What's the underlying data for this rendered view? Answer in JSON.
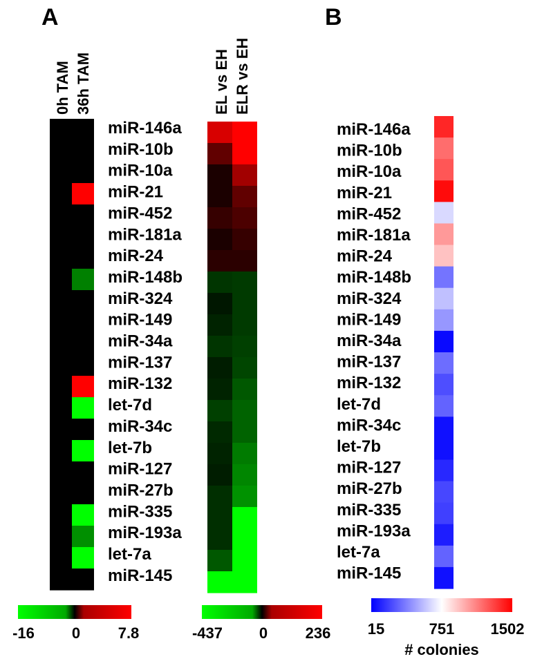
{
  "chart_data": [
    {
      "type": "heatmap",
      "panel_label": "A",
      "columns": [
        "0h TAM",
        "36h TAM"
      ],
      "rows": [
        "miR-146a",
        "miR-10b",
        "miR-10a",
        "miR-21",
        "miR-452",
        "miR-181a",
        "miR-24",
        "miR-148b",
        "miR-324",
        "miR-149",
        "miR-34a",
        "miR-137",
        "miR-132",
        "let-7d",
        "miR-34c",
        "let-7b",
        "miR-127",
        "miR-27b",
        "miR-335",
        "miR-193a",
        "let-7a",
        "miR-145"
      ],
      "values": [
        [
          0,
          0
        ],
        [
          0,
          0
        ],
        [
          0,
          0
        ],
        [
          0,
          7.8
        ],
        [
          0,
          0
        ],
        [
          0,
          0
        ],
        [
          0,
          0
        ],
        [
          0,
          -8
        ],
        [
          0,
          0
        ],
        [
          0,
          0
        ],
        [
          0,
          0
        ],
        [
          0,
          0
        ],
        [
          0,
          7.8
        ],
        [
          0,
          -16
        ],
        [
          0,
          0
        ],
        [
          0,
          -16
        ],
        [
          0,
          0
        ],
        [
          0,
          0
        ],
        [
          0,
          -16
        ],
        [
          0,
          -9
        ],
        [
          0,
          -16
        ],
        [
          0,
          0
        ]
      ],
      "colorbar": {
        "min": -16,
        "mid": 0,
        "max": 7.8,
        "tick_labels": [
          "-16",
          "0",
          "7.8"
        ],
        "colors": [
          "#00ff00",
          "#000000",
          "#ff0000"
        ]
      }
    },
    {
      "type": "heatmap",
      "columns": [
        "EL vs EH",
        "ELR vs EH"
      ],
      "rows": [
        "miR-146a",
        "miR-10b",
        "miR-10a",
        "miR-21",
        "miR-452",
        "miR-181a",
        "miR-24",
        "miR-148b",
        "miR-324",
        "miR-149",
        "miR-34a",
        "miR-137",
        "miR-132",
        "let-7d",
        "miR-34c",
        "let-7b",
        "miR-127",
        "miR-27b",
        "miR-335",
        "miR-193a",
        "let-7a",
        "miR-145"
      ],
      "values": [
        [
          200,
          236
        ],
        [
          90,
          236
        ],
        [
          25,
          150
        ],
        [
          25,
          90
        ],
        [
          50,
          70
        ],
        [
          25,
          50
        ],
        [
          40,
          40
        ],
        [
          -90,
          -100
        ],
        [
          -40,
          -100
        ],
        [
          -60,
          -100
        ],
        [
          -90,
          -110
        ],
        [
          -50,
          -120
        ],
        [
          -60,
          -150
        ],
        [
          -110,
          -170
        ],
        [
          -70,
          -170
        ],
        [
          -60,
          -210
        ],
        [
          -50,
          -230
        ],
        [
          -80,
          -250
        ],
        [
          -80,
          -437
        ],
        [
          -80,
          -437
        ],
        [
          -150,
          -437
        ],
        [
          -437,
          -437
        ]
      ],
      "colorbar": {
        "min": -437,
        "mid": 0,
        "max": 236,
        "tick_labels": [
          "-437",
          "0",
          "236"
        ],
        "colors": [
          "#00ff00",
          "#000000",
          "#ff0000"
        ]
      }
    },
    {
      "type": "heatmap",
      "panel_label": "B",
      "rows": [
        "miR-146a",
        "miR-10b",
        "miR-10a",
        "miR-21",
        "miR-452",
        "miR-181a",
        "miR-24",
        "miR-148b",
        "miR-324",
        "miR-149",
        "miR-34a",
        "miR-137",
        "miR-132",
        "let-7d",
        "miR-34c",
        "let-7b",
        "miR-127",
        "miR-27b",
        "miR-335",
        "miR-193a",
        "let-7a",
        "miR-145"
      ],
      "values": [
        1390,
        1180,
        1250,
        1470,
        640,
        1050,
        930,
        350,
        570,
        450,
        40,
        330,
        240,
        300,
        60,
        60,
        130,
        220,
        200,
        100,
        300,
        60
      ],
      "colorbar": {
        "min": 15,
        "mid": 751,
        "max": 1502,
        "tick_labels": [
          "15",
          "751",
          "1502"
        ],
        "label": "# colonies",
        "colors": [
          "#0000ff",
          "#ffffff",
          "#ff0000"
        ]
      }
    }
  ]
}
